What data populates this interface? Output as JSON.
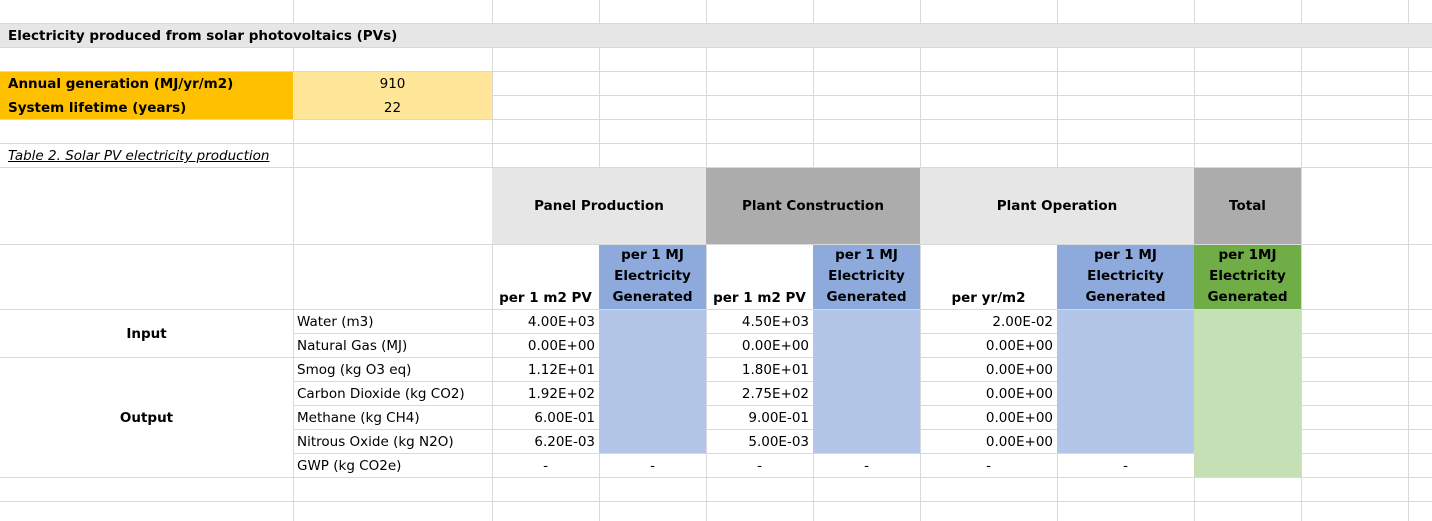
{
  "sheet": {
    "title": "Electricity produced from solar photovoltaics (PVs)",
    "params": [
      {
        "label": "Annual generation (MJ/yr/m2)",
        "value": "910"
      },
      {
        "label": "System lifetime (years)",
        "value": "22"
      }
    ],
    "table_caption": "Table 2. Solar PV electricity production",
    "headers": {
      "panel": "Panel Production",
      "plant": "Plant Construction",
      "operation": "Plant Operation",
      "total": "Total",
      "per_m2": "per 1 m2 PV",
      "per_mj": "per 1 MJ Electricity Generated",
      "per_yr": "per yr/m2",
      "per_mj_total": "per 1MJ Electricity Generated"
    },
    "groups": {
      "input": "Input",
      "output": "Output"
    },
    "rows": [
      {
        "name": "Water (m3)",
        "panel": "4.00E+03",
        "panel_mj": "",
        "plant": "4.50E+03",
        "plant_mj": "",
        "op": "2.00E-02",
        "op_mj": "",
        "total": ""
      },
      {
        "name": "Natural Gas (MJ)",
        "panel": "0.00E+00",
        "panel_mj": "",
        "plant": "0.00E+00",
        "plant_mj": "",
        "op": "0.00E+00",
        "op_mj": "",
        "total": ""
      },
      {
        "name": "Smog (kg O3 eq)",
        "panel": "1.12E+01",
        "panel_mj": "",
        "plant": "1.80E+01",
        "plant_mj": "",
        "op": "0.00E+00",
        "op_mj": "",
        "total": ""
      },
      {
        "name": "Carbon Dioxide (kg CO2)",
        "panel": "1.92E+02",
        "panel_mj": "",
        "plant": "2.75E+02",
        "plant_mj": "",
        "op": "0.00E+00",
        "op_mj": "",
        "total": ""
      },
      {
        "name": "Methane (kg CH4)",
        "panel": "6.00E-01",
        "panel_mj": "",
        "plant": "9.00E-01",
        "plant_mj": "",
        "op": "0.00E+00",
        "op_mj": "",
        "total": ""
      },
      {
        "name": "Nitrous Oxide (kg N2O)",
        "panel": "6.20E-03",
        "panel_mj": "",
        "plant": "5.00E-03",
        "plant_mj": "",
        "op": "0.00E+00",
        "op_mj": "",
        "total": ""
      },
      {
        "name": "GWP (kg CO2e)",
        "panel": "-",
        "panel_mj": "-",
        "plant": "-",
        "plant_mj": "-",
        "op": "-",
        "op_mj": "-",
        "total": ""
      }
    ]
  }
}
